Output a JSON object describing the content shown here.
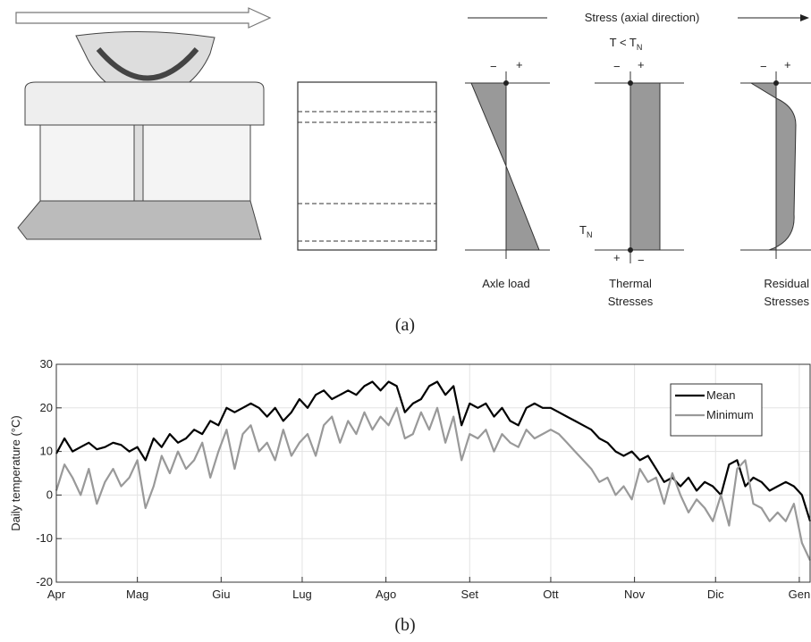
{
  "panel_a": {
    "stress_header": "Stress (axial direction)",
    "condition": {
      "text": "T < T",
      "sub": "N"
    },
    "neutral": {
      "text": "T",
      "sub": "N"
    },
    "signs": [
      "−",
      "+",
      "−",
      "+",
      "+",
      "−",
      "−",
      "+"
    ],
    "labels": {
      "axle": [
        "Axle load"
      ],
      "thermal": [
        "Thermal",
        "Stresses"
      ],
      "residual": [
        "Residual",
        "Stresses"
      ]
    },
    "caption": "(a)"
  },
  "chart_data": {
    "type": "line",
    "ylabel": "Daily temperature (°C)",
    "x": [
      0,
      3,
      6,
      9,
      12,
      15,
      18,
      21,
      24,
      27,
      30,
      33,
      36,
      39,
      42,
      45,
      48,
      51,
      54,
      57,
      60,
      63,
      66,
      69,
      72,
      75,
      78,
      81,
      84,
      87,
      90,
      93,
      96,
      99,
      102,
      105,
      108,
      111,
      114,
      117,
      120,
      123,
      126,
      129,
      132,
      135,
      138,
      141,
      144,
      147,
      150,
      153,
      156,
      159,
      162,
      165,
      168,
      171,
      174,
      177,
      180,
      183,
      186,
      189,
      192,
      195,
      198,
      201,
      204,
      207,
      210,
      213,
      216,
      219,
      222,
      225,
      228,
      231,
      234,
      237,
      240,
      243,
      246,
      249,
      252,
      255,
      258,
      261,
      264,
      267,
      270,
      273,
      276,
      279
    ],
    "xlim": [
      0,
      279
    ],
    "xticks": [
      {
        "value": 0,
        "label": "Apr"
      },
      {
        "value": 30,
        "label": "Mag"
      },
      {
        "value": 61,
        "label": "Giu"
      },
      {
        "value": 91,
        "label": "Lug"
      },
      {
        "value": 122,
        "label": "Ago"
      },
      {
        "value": 153,
        "label": "Set"
      },
      {
        "value": 183,
        "label": "Ott"
      },
      {
        "value": 214,
        "label": "Nov"
      },
      {
        "value": 244,
        "label": "Dic"
      },
      {
        "value": 275,
        "label": "Gen"
      }
    ],
    "ylim": [
      -20,
      30
    ],
    "yticks": [
      -20,
      -10,
      0,
      10,
      20,
      30
    ],
    "grid": true,
    "legend": "upper right",
    "series": [
      {
        "name": "Mean",
        "color": "#000000",
        "values": [
          9.5,
          13,
          10,
          11,
          12,
          10.5,
          11,
          12,
          11.5,
          10,
          11,
          8,
          13,
          11,
          14,
          12,
          13,
          15,
          14,
          17,
          16,
          20,
          19,
          20,
          21,
          20,
          18,
          20,
          17,
          19,
          22,
          20,
          23,
          24,
          22,
          23,
          24,
          23,
          25,
          26,
          24,
          26,
          25,
          19,
          21,
          22,
          25,
          26,
          23,
          25,
          16,
          21,
          20,
          21,
          18,
          20,
          17,
          16,
          20,
          21,
          20,
          20,
          19,
          18,
          17,
          16,
          15,
          13,
          12,
          10,
          9,
          10,
          8,
          9,
          6,
          3,
          4,
          2,
          4,
          1,
          3,
          2,
          0,
          7,
          8,
          2,
          4,
          3,
          1,
          2,
          3,
          2,
          0,
          -6
        ]
      },
      {
        "name": "Minimum",
        "color": "#999999",
        "values": [
          1,
          7,
          4,
          0,
          6,
          -2,
          3,
          6,
          2,
          4,
          8,
          -3,
          2,
          9,
          5,
          10,
          6,
          8,
          12,
          4,
          10,
          15,
          6,
          14,
          16,
          10,
          12,
          8,
          15,
          9,
          12,
          14,
          9,
          16,
          18,
          12,
          17,
          14,
          19,
          15,
          18,
          16,
          20,
          13,
          14,
          19,
          15,
          20,
          12,
          18,
          8,
          14,
          13,
          15,
          10,
          14,
          12,
          11,
          15,
          13,
          14,
          15,
          14,
          12,
          10,
          8,
          6,
          3,
          4,
          0,
          2,
          -1,
          6,
          3,
          4,
          -2,
          5,
          0,
          -4,
          -1,
          -3,
          -6,
          0,
          -7,
          6,
          8,
          -2,
          -3,
          -6,
          -4,
          -6,
          -2,
          -11,
          -15
        ]
      }
    ],
    "caption": "(b)"
  }
}
